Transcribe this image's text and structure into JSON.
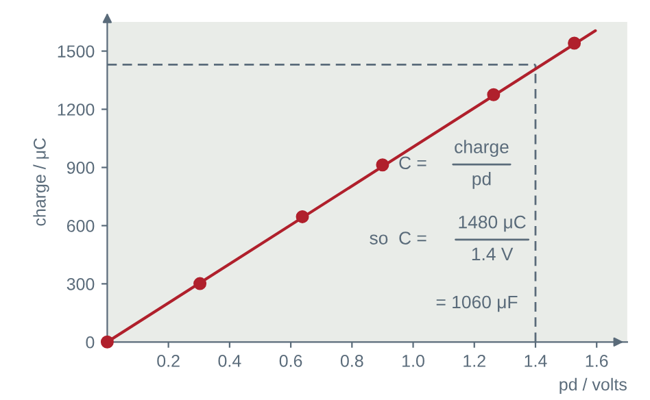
{
  "chart_data": {
    "type": "scatter",
    "xlabel": "pd / volts",
    "ylabel": "charge / μC",
    "xlim": [
      0,
      1.7
    ],
    "ylim": [
      0,
      1650
    ],
    "xticks": [
      0.2,
      0.4,
      0.6,
      0.8,
      "1.0",
      1.2,
      1.4,
      1.6
    ],
    "yticks": [
      0,
      300,
      600,
      900,
      1200,
      1500
    ],
    "series": [
      {
        "type": "line",
        "color": "#b0202c",
        "x": [
          0,
          1.596
        ],
        "values": [
          0,
          1605
        ],
        "marker": "none",
        "line_style": "solid"
      },
      {
        "color": "#b0202c",
        "x": [
          0,
          0.303,
          0.638,
          0.9,
          1.263,
          1.527
        ],
        "values": [
          0,
          301,
          646,
          913,
          1275,
          1541
        ],
        "marker": "circle"
      }
    ],
    "ref_lines": [
      {
        "axis": "y",
        "value": 1430,
        "color": "#5a6b7a",
        "line_style": "dashed"
      },
      {
        "axis": "x",
        "value": 1.4,
        "color": "#5a6b7a",
        "line_style": "dashed"
      }
    ],
    "annotations": [
      "C =",
      "charge",
      "pd",
      "so  C =",
      "1480 μC",
      "1.4 V",
      "= 1060 μF"
    ],
    "grid": false
  }
}
